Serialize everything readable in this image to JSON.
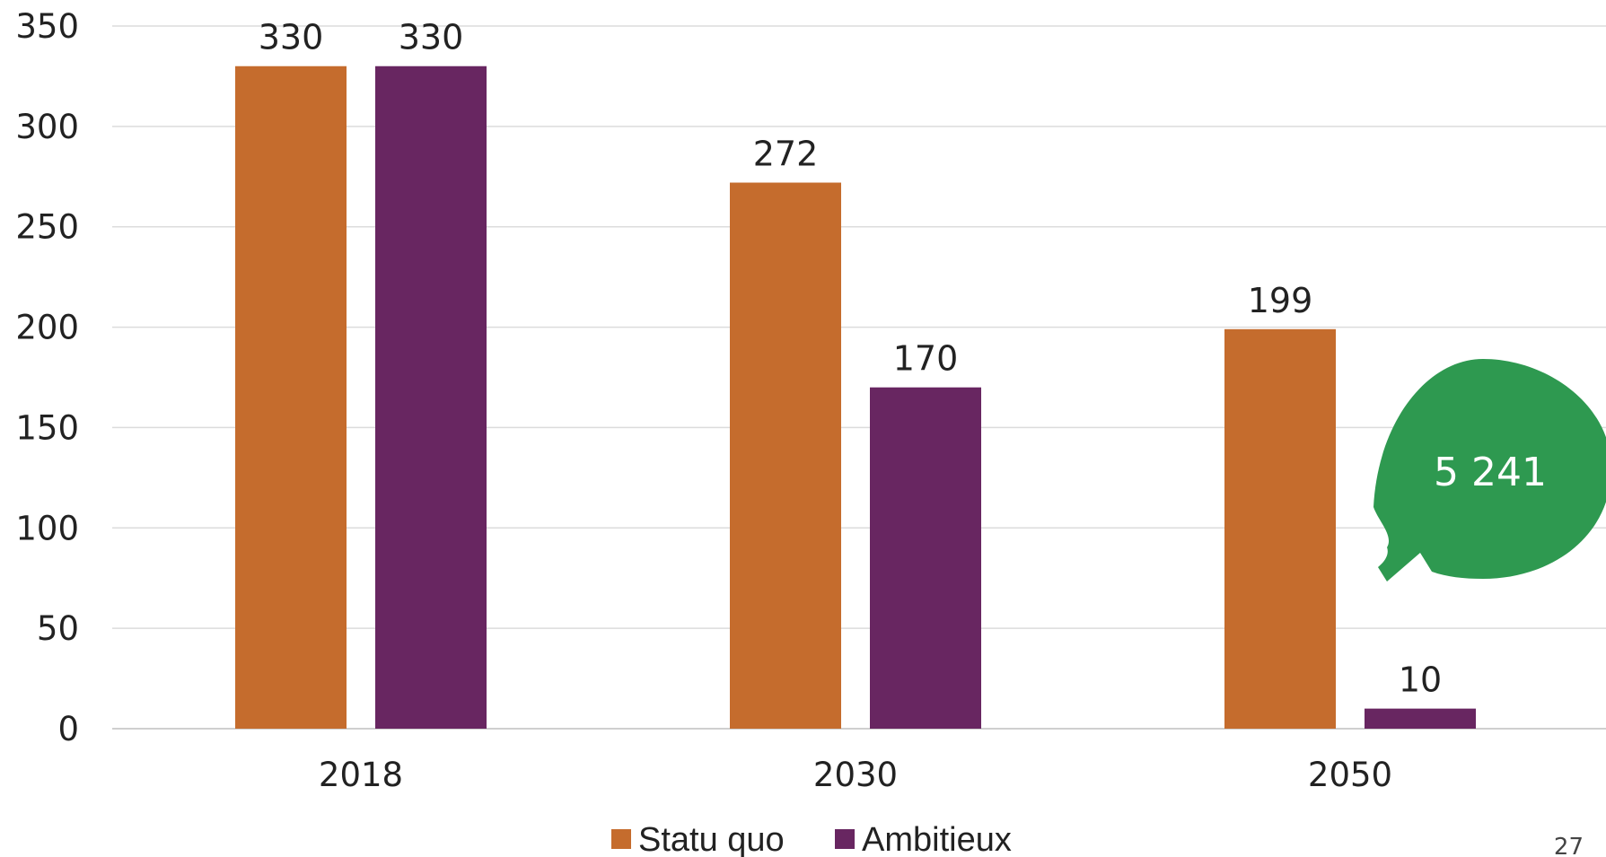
{
  "chart_data": {
    "type": "bar",
    "categories": [
      "2018",
      "2030",
      "2050"
    ],
    "series": [
      {
        "name": "Statu quo",
        "values": [
          330,
          272,
          199
        ],
        "color": "#C56C2D"
      },
      {
        "name": "Ambitieux",
        "values": [
          330,
          170,
          10
        ],
        "color": "#682661"
      }
    ],
    "ylim": [
      0,
      350
    ],
    "yticks": [
      0,
      50,
      100,
      150,
      200,
      250,
      300,
      350
    ],
    "grid": true,
    "legend": "bottom-center",
    "data_labels": true,
    "title": "",
    "xlabel": "",
    "ylabel": "",
    "annotation": {
      "text": "5 241",
      "shape": "speech-bubble",
      "color": "#2E9950",
      "points_to": "2050 Ambitieux"
    }
  },
  "page_number": "27"
}
